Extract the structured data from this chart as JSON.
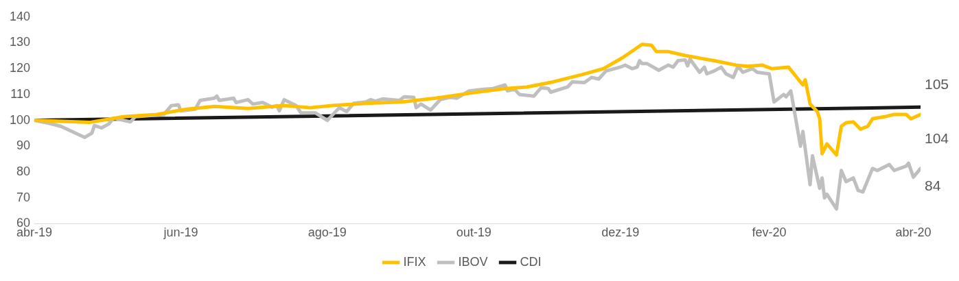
{
  "chart_data": {
    "type": "line",
    "xlim": [
      "2019-04-01",
      "2020-04-04"
    ],
    "xticks": [
      {
        "value": "2019-04-01",
        "label": "abr-19"
      },
      {
        "value": "2019-06-01",
        "label": "jun-19"
      },
      {
        "value": "2019-08-01",
        "label": "ago-19"
      },
      {
        "value": "2019-10-01",
        "label": "out-19"
      },
      {
        "value": "2019-12-01",
        "label": "dez-19"
      },
      {
        "value": "2020-02-01",
        "label": "fev-20"
      },
      {
        "value": "2020-04-01",
        "label": "abr-20"
      }
    ],
    "ylim": [
      60,
      140
    ],
    "yticks": [
      60,
      70,
      80,
      90,
      100,
      110,
      120,
      130,
      140
    ],
    "grid": false,
    "legend": "bottom",
    "marker": "none",
    "line_style": "solid",
    "annotations": [
      "105",
      "104",
      "84"
    ],
    "series": [
      {
        "name": "IFIX",
        "color": "#ffc000",
        "x": [
          "2019-04-01",
          "2019-04-24",
          "2019-05-08",
          "2019-05-22",
          "2019-06-03",
          "2019-06-15",
          "2019-06-29",
          "2019-07-14",
          "2019-07-25",
          "2019-08-03",
          "2019-08-17",
          "2019-09-01",
          "2019-09-15",
          "2019-09-30",
          "2019-10-14",
          "2019-10-23",
          "2019-11-03",
          "2019-11-15",
          "2019-11-24",
          "2019-12-02",
          "2019-12-10",
          "2019-12-14",
          "2019-12-16",
          "2019-12-21",
          "2019-12-28",
          "2020-01-09",
          "2020-01-18",
          "2020-01-23",
          "2020-01-29",
          "2020-02-02",
          "2020-02-09",
          "2020-02-15",
          "2020-02-16",
          "2020-02-18",
          "2020-02-21",
          "2020-02-22",
          "2020-02-23",
          "2020-02-25",
          "2020-02-29",
          "2020-03-02",
          "2020-03-04",
          "2020-03-07",
          "2020-03-10",
          "2020-03-13",
          "2020-03-15",
          "2020-03-20",
          "2020-03-24",
          "2020-03-29",
          "2020-03-31",
          "2020-04-04"
        ],
        "values": [
          100,
          99.2,
          101.4,
          102.3,
          104.3,
          105.4,
          104.6,
          105.7,
          104.9,
          105.7,
          106.6,
          107.1,
          108.6,
          110.6,
          112.3,
          112.9,
          114.9,
          117.7,
          120,
          124.3,
          129.4,
          129.1,
          126.6,
          126.6,
          125.1,
          123.1,
          121.4,
          120.9,
          121.4,
          120,
          120.6,
          113.7,
          115.7,
          106.3,
          103.4,
          100.6,
          87.1,
          90.9,
          86.6,
          97.7,
          99.1,
          99.4,
          96.6,
          97.7,
          100.6,
          101.4,
          102.3,
          102.3,
          100.6,
          102.3
        ]
      },
      {
        "name": "IBOV",
        "color": "#bfbfbf",
        "x": [
          "2019-04-01",
          "2019-04-07",
          "2019-04-12",
          "2019-04-18",
          "2019-04-22",
          "2019-04-25",
          "2019-04-26",
          "2019-04-29",
          "2019-05-02",
          "2019-05-04",
          "2019-05-11",
          "2019-05-13",
          "2019-05-25",
          "2019-05-28",
          "2019-05-31",
          "2019-06-01",
          "2019-06-07",
          "2019-06-09",
          "2019-06-15",
          "2019-06-16",
          "2019-06-17",
          "2019-06-23",
          "2019-06-24",
          "2019-06-29",
          "2019-07-01",
          "2019-07-05",
          "2019-07-09",
          "2019-07-11",
          "2019-07-12",
          "2019-07-14",
          "2019-07-19",
          "2019-07-21",
          "2019-07-27",
          "2019-08-01",
          "2019-08-06",
          "2019-08-09",
          "2019-08-12",
          "2019-08-17",
          "2019-08-19",
          "2019-08-21",
          "2019-08-24",
          "2019-08-31",
          "2019-09-02",
          "2019-09-06",
          "2019-09-07",
          "2019-09-09",
          "2019-09-13",
          "2019-09-17",
          "2019-09-21",
          "2019-09-24",
          "2019-09-29",
          "2019-10-05",
          "2019-10-09",
          "2019-10-14",
          "2019-10-15",
          "2019-10-18",
          "2019-10-20",
          "2019-10-26",
          "2019-10-29",
          "2019-11-01",
          "2019-11-02",
          "2019-11-09",
          "2019-11-11",
          "2019-11-16",
          "2019-11-19",
          "2019-11-22",
          "2019-11-25",
          "2019-12-01",
          "2019-12-03",
          "2019-12-06",
          "2019-12-08",
          "2019-12-09",
          "2019-12-10",
          "2019-12-12",
          "2019-12-17",
          "2019-12-21",
          "2019-12-23",
          "2019-12-25",
          "2019-12-28",
          "2019-12-29",
          "2019-12-30",
          "2020-01-03",
          "2020-01-05",
          "2020-01-06",
          "2020-01-09",
          "2020-01-12",
          "2020-01-14",
          "2020-01-17",
          "2020-01-19",
          "2020-01-21",
          "2020-01-25",
          "2020-01-27",
          "2020-02-01",
          "2020-02-03",
          "2020-02-07",
          "2020-02-08",
          "2020-02-10",
          "2020-02-14",
          "2020-02-15",
          "2020-02-18",
          "2020-02-19",
          "2020-02-22",
          "2020-02-23",
          "2020-02-24",
          "2020-02-25",
          "2020-02-29",
          "2020-03-02",
          "2020-03-04",
          "2020-03-07",
          "2020-03-09",
          "2020-03-11",
          "2020-03-15",
          "2020-03-17",
          "2020-03-22",
          "2020-03-24",
          "2020-03-29",
          "2020-03-30",
          "2020-04-01",
          "2020-04-04"
        ],
        "values": [
          100,
          98.9,
          97.7,
          95.1,
          93.4,
          95.1,
          98,
          97.1,
          98.6,
          100.9,
          99.4,
          101.4,
          102.3,
          105.7,
          106,
          103.7,
          104.3,
          107.7,
          108.6,
          109.4,
          107.7,
          108.6,
          106.9,
          108,
          106.3,
          106.9,
          105.1,
          105.7,
          103.7,
          108,
          105.7,
          102.9,
          102.9,
          100,
          104.9,
          103.4,
          106.6,
          107.1,
          108,
          107.4,
          108.3,
          107.7,
          109.1,
          108.9,
          104.9,
          106.3,
          104,
          108,
          108.9,
          108.6,
          111.4,
          112,
          112.3,
          113.7,
          111.4,
          112,
          110,
          109.4,
          112.6,
          112.3,
          110.9,
          112.9,
          114.9,
          114.6,
          116.6,
          116,
          119.1,
          120.6,
          121.4,
          120,
          120.6,
          123.1,
          122,
          122,
          119.4,
          121.4,
          120.6,
          123.1,
          123.4,
          121.1,
          123.7,
          118.6,
          120.6,
          118,
          119.1,
          120.6,
          118,
          116.6,
          120.9,
          118.6,
          120,
          118.6,
          118,
          107.1,
          110,
          109.1,
          111.4,
          90,
          95.7,
          75.1,
          86.3,
          73.7,
          77.7,
          70,
          71.4,
          65.7,
          80.6,
          76.3,
          77.7,
          72.9,
          72.3,
          81.4,
          80.6,
          82.9,
          80.6,
          82.3,
          83.4,
          78,
          81.4
        ]
      },
      {
        "name": "CDI",
        "color": "#1a1a1a",
        "x": [
          "2019-04-01",
          "2020-04-04"
        ],
        "values": [
          100,
          105.1
        ]
      }
    ]
  }
}
